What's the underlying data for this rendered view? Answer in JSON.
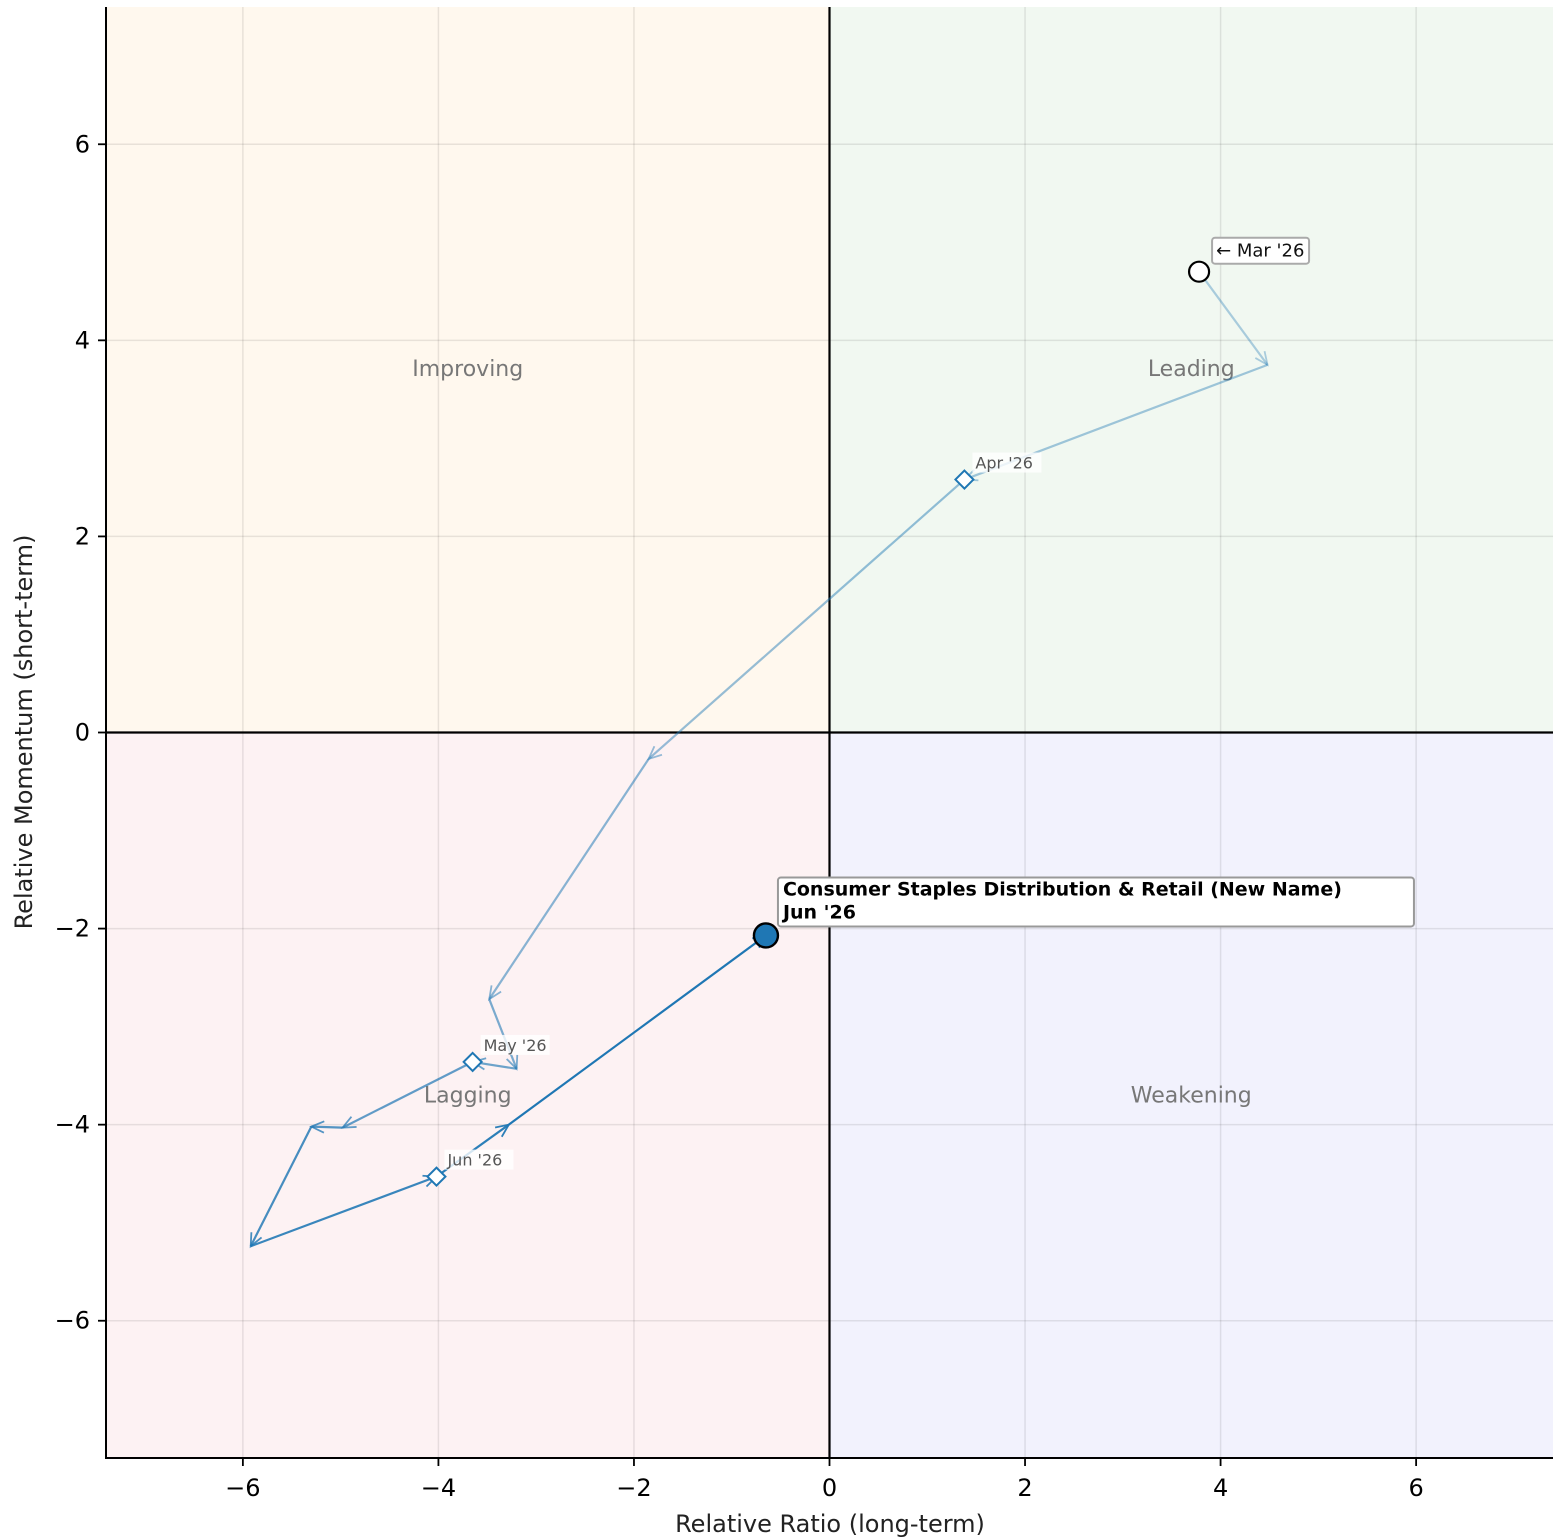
{
  "chart_data": {
    "type": "scatter",
    "title": "",
    "xlabel": "Relative Ratio (long-term)",
    "ylabel": "Relative Momentum (short-term)",
    "xlim": [
      -7.4,
      7.4
    ],
    "ylim": [
      -7.4,
      7.4
    ],
    "xticks": [
      -6,
      -4,
      -2,
      0,
      2,
      4,
      6
    ],
    "yticks": [
      -6,
      -4,
      -2,
      0,
      2,
      4,
      6
    ],
    "xtick_labels": [
      "−6",
      "−4",
      "−2",
      "0",
      "2",
      "4",
      "6"
    ],
    "ytick_labels": [
      "−6",
      "−4",
      "−2",
      "0",
      "2",
      "4",
      "6"
    ],
    "grid": true,
    "quadrants": [
      {
        "name": "Improving",
        "x": -3.7,
        "y": 3.72,
        "fill": "#fff8ee"
      },
      {
        "name": "Leading",
        "x": 3.7,
        "y": 3.72,
        "fill": "#f1f8f1"
      },
      {
        "name": "Lagging",
        "x": -3.7,
        "y": -3.69,
        "fill": "#fdf2f3"
      },
      {
        "name": "Weakening",
        "x": 3.7,
        "y": -3.69,
        "fill": "#f2f2fd"
      }
    ],
    "series": [
      {
        "name": "Consumer Staples Distribution & Retail (New Name)",
        "color": "#1f77b4",
        "points": [
          {
            "x": 3.78,
            "y": 4.7
          },
          {
            "x": 4.48,
            "y": 3.75
          },
          {
            "x": 1.38,
            "y": 2.58
          },
          {
            "x": -1.85,
            "y": -0.27
          },
          {
            "x": -3.48,
            "y": -2.72
          },
          {
            "x": -3.2,
            "y": -3.43
          },
          {
            "x": -3.65,
            "y": -3.36
          },
          {
            "x": -4.98,
            "y": -4.03
          },
          {
            "x": -5.3,
            "y": -4.02
          },
          {
            "x": -5.92,
            "y": -5.24
          },
          {
            "x": -4.02,
            "y": -4.53
          },
          {
            "x": -3.28,
            "y": -4.0
          },
          {
            "x": -0.65,
            "y": -2.07
          }
        ]
      }
    ],
    "month_markers": [
      {
        "label": "Apr '26",
        "x": 1.38,
        "y": 2.58
      },
      {
        "label": "May '26",
        "x": -3.65,
        "y": -3.36
      },
      {
        "label": "Jun '26",
        "x": -4.02,
        "y": -4.53
      }
    ],
    "start_point": {
      "label": "← Mar '26",
      "x": 3.78,
      "y": 4.7
    },
    "end_point": {
      "label_line1": "Consumer Staples Distribution & Retail (New Name)",
      "label_line2": "Jun '26",
      "x": -0.65,
      "y": -2.07
    }
  }
}
